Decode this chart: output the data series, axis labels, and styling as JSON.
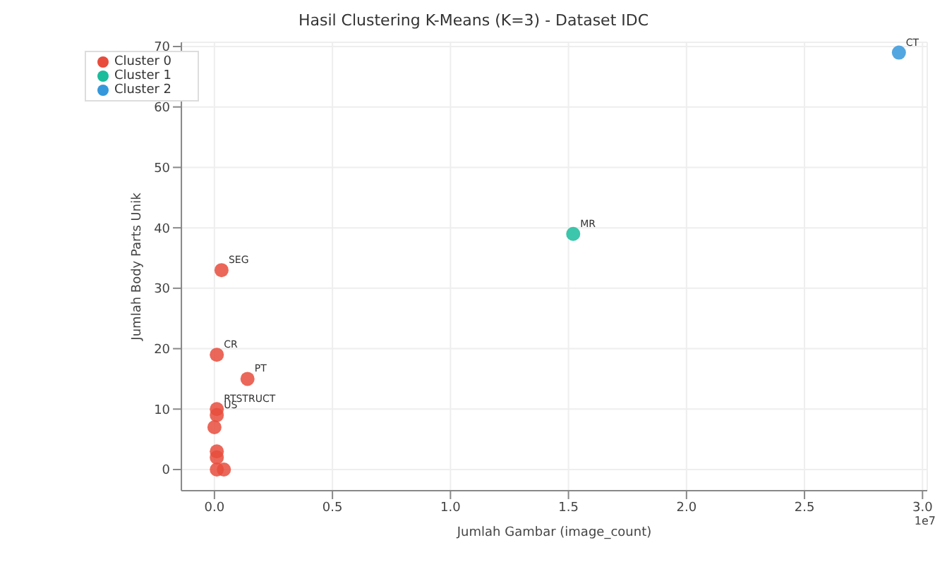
{
  "chart_data": {
    "type": "scatter",
    "title": "Hasil Clustering K-Means (K=3) - Dataset IDC",
    "xlabel": "Jumlah Gambar (image_count)",
    "ylabel": "Jumlah Body Parts Unik",
    "xlim": [
      -0.14,
      3.02
    ],
    "ylim": [
      -3.5,
      70.7
    ],
    "xticks": [
      {
        "value": 0,
        "label": "0.0"
      },
      0.5,
      {
        "value": 1,
        "label": "1.0"
      },
      1.5,
      {
        "value": 2,
        "label": "2.0"
      },
      2.5,
      {
        "value": 3,
        "label": "3.0"
      }
    ],
    "yticks": [
      0,
      10,
      20,
      30,
      40,
      50,
      60,
      70
    ],
    "grid": true,
    "legend": "top left",
    "marker": "circle",
    "series": [
      {
        "name": "Cluster 0",
        "color": "#e74c3c",
        "x": [
          0.03,
          0.01,
          0.14,
          0.01,
          0.01,
          0.0,
          0.01,
          0.01,
          0.01,
          0.04
        ],
        "values": [
          33,
          19,
          15,
          10,
          9,
          7,
          3,
          2,
          0,
          0
        ]
      },
      {
        "name": "Cluster 1",
        "color": "#1abc9c",
        "x": [
          1.52
        ],
        "values": [
          39
        ]
      },
      {
        "name": "Cluster 2",
        "color": "#3498db",
        "x": [
          2.9
        ],
        "values": [
          69
        ]
      }
    ],
    "annotations": [
      {
        "text": "CT",
        "x": 2.9,
        "y": 69
      },
      {
        "text": "MR",
        "x": 1.52,
        "y": 39
      },
      {
        "text": "SEG",
        "x": 0.03,
        "y": 33
      },
      {
        "text": "CR",
        "x": 0.01,
        "y": 19
      },
      {
        "text": "PT",
        "x": 0.14,
        "y": 15
      },
      {
        "text": "RTSTRUCT",
        "x": 0.01,
        "y": 10
      },
      {
        "text": "US",
        "x": 0.01,
        "y": 9
      },
      "1e7"
    ]
  }
}
